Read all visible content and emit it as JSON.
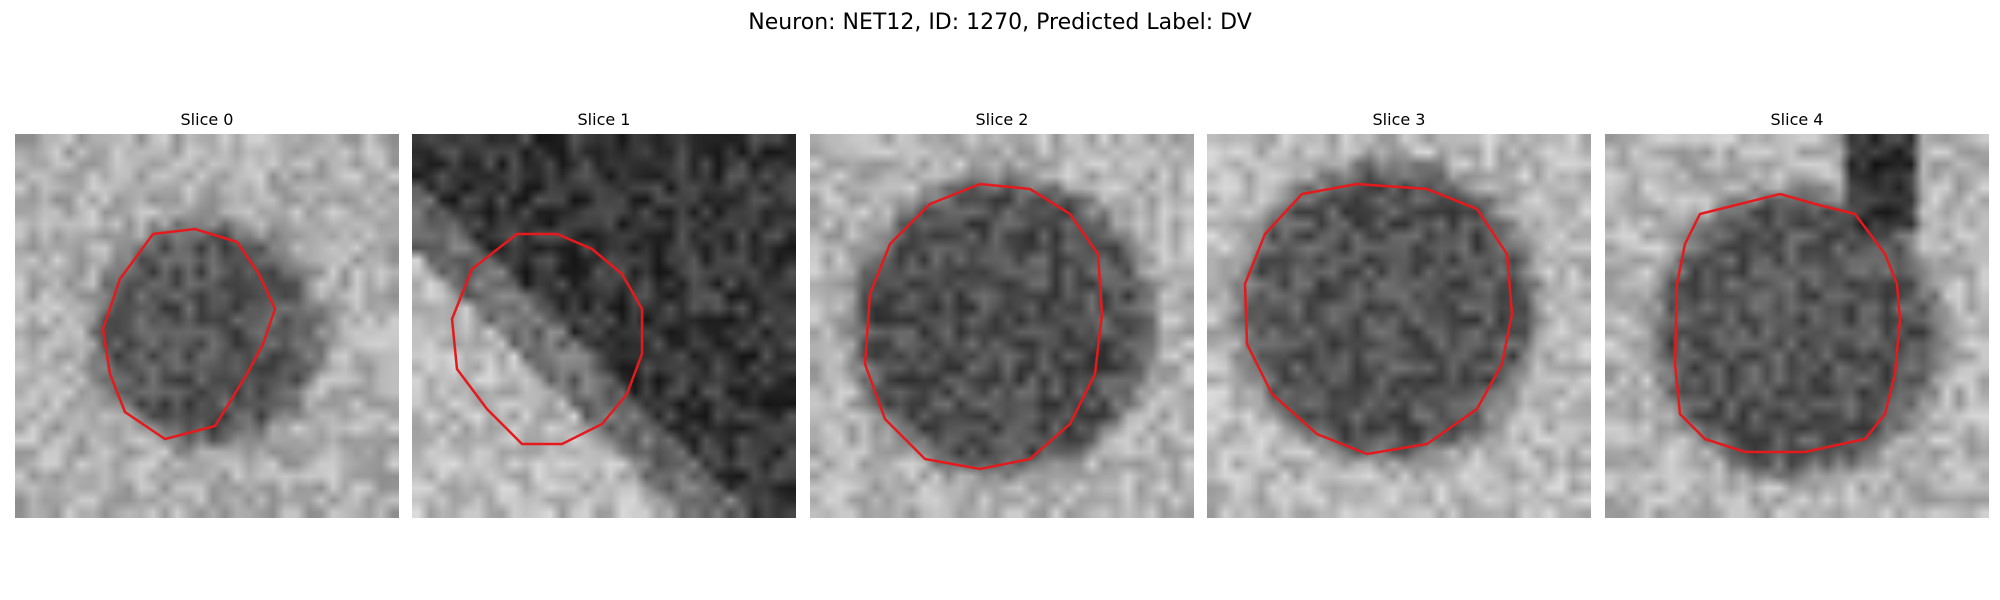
{
  "figure": {
    "title": "Neuron: NET12, ID: 1270, Predicted Label: DV",
    "outline_color": "#e41a1c"
  },
  "slices": [
    {
      "title": "Slice 0"
    },
    {
      "title": "Slice 1"
    },
    {
      "title": "Slice 2"
    },
    {
      "title": "Slice 3"
    },
    {
      "title": "Slice 4"
    }
  ]
}
